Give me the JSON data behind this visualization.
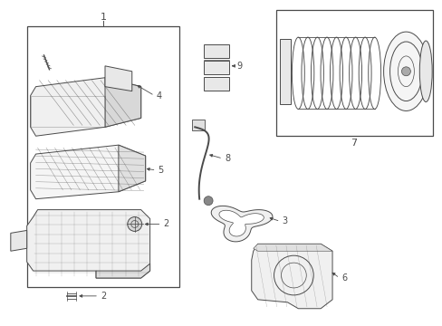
{
  "bg_color": "#ffffff",
  "line_color": "#4a4a4a",
  "label_color": "#000000",
  "fig_width": 4.89,
  "fig_height": 3.6,
  "dpi": 100
}
